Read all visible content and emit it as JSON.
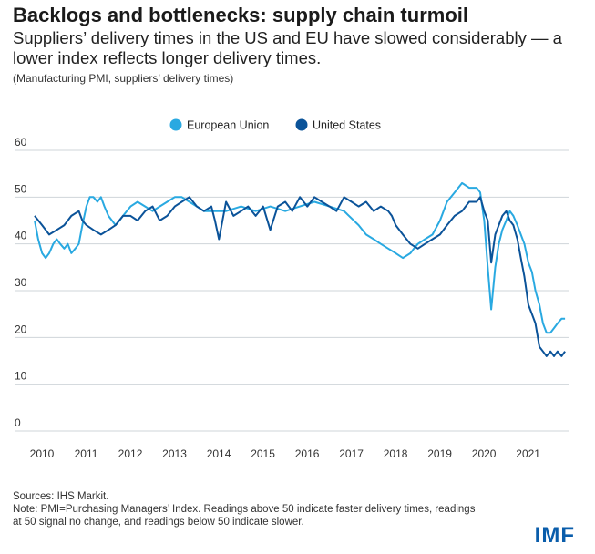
{
  "header": {
    "title": "Backlogs and bottlenecks: supply chain turmoil",
    "subtitle": "Suppliers’ delivery times in the US and EU have slowed considerably — a lower index reflects longer delivery times.",
    "subnote": "(Manufacturing PMI, suppliers’ delivery times)"
  },
  "footer": {
    "sources": "Sources: IHS Markit.",
    "note": "Note: PMI=Purchasing Managers’ Index. Readings above 50 indicate faster delivery times, readings at 50 signal no change, and readings below 50 indicate slower.",
    "logo": "IMF"
  },
  "chart_data": {
    "type": "line",
    "legend_position": "top-center",
    "grid": true,
    "ylim": [
      0,
      60
    ],
    "yticks": [
      "0",
      "10",
      "20",
      "30",
      "40",
      "50",
      "60"
    ],
    "xlim": [
      2010,
      2022.1
    ],
    "xticks": [
      "2010",
      "2011",
      "2012",
      "2013",
      "2014",
      "2015",
      "2016",
      "2017",
      "2018",
      "2019",
      "2020",
      "2021"
    ],
    "colors": {
      "eu": "#29a9e1",
      "us": "#0b5399"
    },
    "series": [
      {
        "name": "European Union",
        "color": "#29a9e1",
        "x": [
          2010.0,
          2010.08,
          2010.17,
          2010.25,
          2010.33,
          2010.42,
          2010.5,
          2010.58,
          2010.67,
          2010.75,
          2010.83,
          2010.92,
          2011.0,
          2011.08,
          2011.17,
          2011.25,
          2011.33,
          2011.42,
          2011.5,
          2011.58,
          2011.67,
          2011.75,
          2011.83,
          2011.92,
          2012.0,
          2012.17,
          2012.33,
          2012.5,
          2012.67,
          2012.83,
          2013.0,
          2013.17,
          2013.33,
          2013.5,
          2013.67,
          2013.83,
          2014.0,
          2014.33,
          2014.67,
          2015.0,
          2015.33,
          2015.67,
          2016.0,
          2016.33,
          2016.67,
          2017.0,
          2017.33,
          2017.5,
          2017.67,
          2017.83,
          2018.0,
          2018.17,
          2018.33,
          2018.5,
          2018.58,
          2018.67,
          2018.83,
          2019.0,
          2019.17,
          2019.33,
          2019.5,
          2019.67,
          2019.83,
          2020.0,
          2020.08,
          2020.17,
          2020.25,
          2020.33,
          2020.42,
          2020.5,
          2020.58,
          2020.67,
          2020.75,
          2020.83,
          2020.92,
          2021.0,
          2021.08,
          2021.17,
          2021.25,
          2021.33,
          2021.42,
          2021.5,
          2021.58,
          2021.67,
          2021.75,
          2021.83,
          2021.92,
          2022.0
        ],
        "values": [
          45,
          41,
          38,
          37,
          38,
          40,
          41,
          40,
          39,
          40,
          38,
          39,
          40,
          44,
          48,
          50,
          50,
          49,
          50,
          48,
          46,
          45,
          44,
          45,
          46,
          48,
          49,
          48,
          47,
          48,
          49,
          50,
          50,
          49,
          48,
          47,
          47,
          47,
          48,
          47,
          48,
          47,
          48,
          49,
          48,
          47,
          44,
          42,
          41,
          40,
          39,
          38,
          37,
          38,
          39,
          40,
          41,
          42,
          45,
          49,
          51,
          53,
          52,
          52,
          51,
          45,
          35,
          26,
          35,
          40,
          43,
          45,
          47,
          46,
          44,
          42,
          40,
          36,
          34,
          30,
          27,
          23,
          21,
          21,
          22,
          23,
          24,
          24
        ]
      },
      {
        "name": "United States",
        "color": "#0b5399",
        "x": [
          2010.0,
          2010.17,
          2010.33,
          2010.5,
          2010.67,
          2010.83,
          2011.0,
          2011.08,
          2011.17,
          2011.33,
          2011.5,
          2011.67,
          2011.83,
          2012.0,
          2012.17,
          2012.33,
          2012.5,
          2012.67,
          2012.83,
          2013.0,
          2013.17,
          2013.33,
          2013.5,
          2013.67,
          2013.83,
          2014.0,
          2014.08,
          2014.17,
          2014.33,
          2014.5,
          2014.67,
          2014.83,
          2015.0,
          2015.17,
          2015.33,
          2015.5,
          2015.67,
          2015.83,
          2016.0,
          2016.17,
          2016.33,
          2016.5,
          2016.67,
          2016.83,
          2017.0,
          2017.17,
          2017.33,
          2017.5,
          2017.67,
          2017.83,
          2018.0,
          2018.08,
          2018.17,
          2018.33,
          2018.5,
          2018.67,
          2018.83,
          2019.0,
          2019.17,
          2019.33,
          2019.5,
          2019.67,
          2019.83,
          2020.0,
          2020.08,
          2020.17,
          2020.25,
          2020.33,
          2020.42,
          2020.5,
          2020.58,
          2020.67,
          2020.75,
          2020.83,
          2020.92,
          2021.0,
          2021.08,
          2021.17,
          2021.25,
          2021.33,
          2021.42,
          2021.5,
          2021.58,
          2021.67,
          2021.75,
          2021.83,
          2021.92,
          2022.0
        ],
        "values": [
          46,
          44,
          42,
          43,
          44,
          46,
          47,
          45,
          44,
          43,
          42,
          43,
          44,
          46,
          46,
          45,
          47,
          48,
          45,
          46,
          48,
          49,
          50,
          48,
          47,
          48,
          45,
          41,
          49,
          46,
          47,
          48,
          46,
          48,
          43,
          48,
          49,
          47,
          50,
          48,
          50,
          49,
          48,
          47,
          50,
          49,
          48,
          49,
          47,
          48,
          47,
          46,
          44,
          42,
          40,
          39,
          40,
          41,
          42,
          44,
          46,
          47,
          49,
          49,
          50,
          47,
          45,
          36,
          42,
          44,
          46,
          47,
          45,
          44,
          41,
          37,
          33,
          27,
          25,
          23,
          18,
          17,
          16,
          17,
          16,
          17,
          16,
          17
        ]
      }
    ]
  }
}
